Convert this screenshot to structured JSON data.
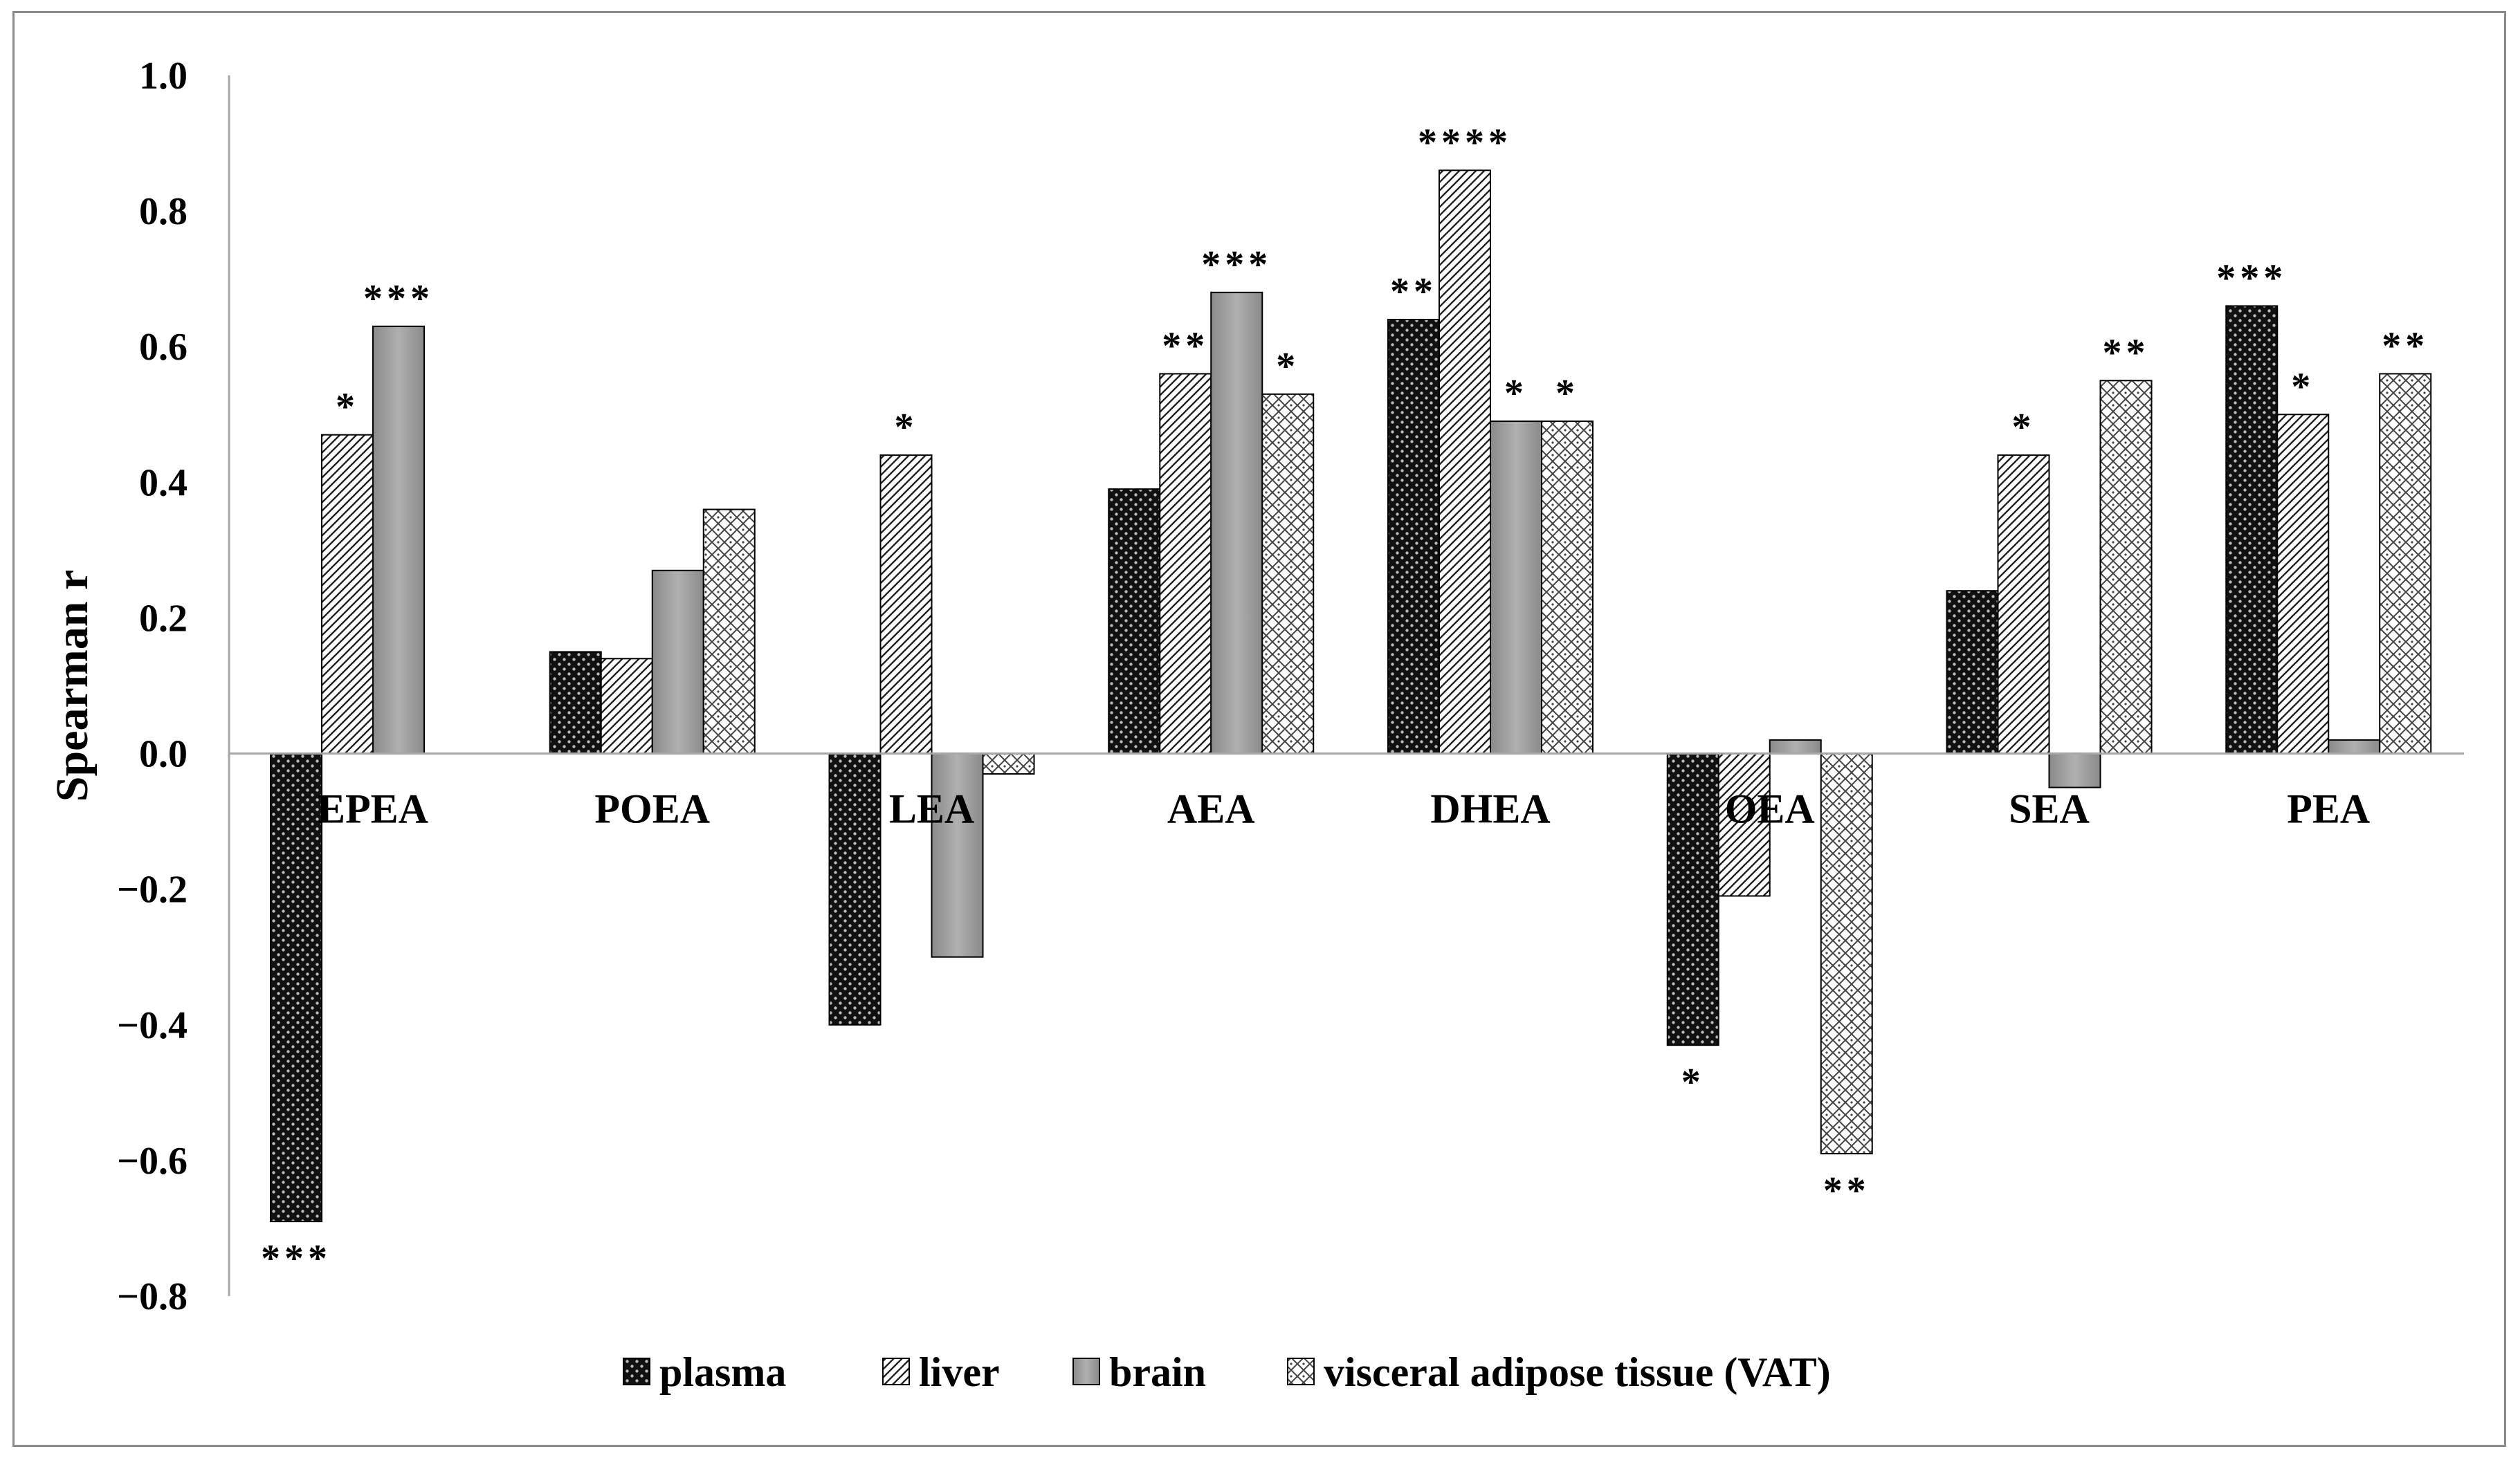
{
  "chart_data": {
    "type": "bar",
    "title": "",
    "xlabel": "",
    "ylabel": "Spearman r",
    "ylim": [
      -0.8,
      1.0
    ],
    "ytick_step": 0.2,
    "yticks": [
      "1.0",
      "0.8",
      "0.6",
      "0.4",
      "0.2",
      "0.0",
      "−0.2",
      "−0.4",
      "−0.6",
      "−0.8"
    ],
    "grid": false,
    "legend_position": "bottom",
    "categories": [
      "EPEA",
      "POEA",
      "LEA",
      "AEA",
      "DHEA",
      "OEA",
      "SEA",
      "PEA"
    ],
    "series": [
      {
        "name": "plasma",
        "pattern": "dots-dark",
        "values": [
          -0.69,
          0.15,
          -0.4,
          0.39,
          0.64,
          -0.43,
          0.24,
          0.66
        ],
        "significance": [
          "***",
          "",
          "",
          "",
          "**",
          "*",
          "",
          "***"
        ]
      },
      {
        "name": "liver",
        "pattern": "diagonal",
        "values": [
          0.47,
          0.14,
          0.44,
          0.56,
          0.86,
          -0.21,
          0.44,
          0.5
        ],
        "significance": [
          "*",
          "",
          "*",
          "**",
          "****",
          "",
          "*",
          "*"
        ]
      },
      {
        "name": "brain",
        "pattern": "solid-gray",
        "values": [
          0.63,
          0.27,
          -0.3,
          0.68,
          0.49,
          0.02,
          -0.05,
          0.02
        ],
        "significance": [
          "***",
          "",
          "",
          "***",
          "*",
          "",
          "",
          ""
        ]
      },
      {
        "name": "visceral adipose tissue (VAT)",
        "pattern": "crosshatch",
        "values": [
          0.0,
          0.36,
          -0.03,
          0.53,
          0.49,
          -0.59,
          0.55,
          0.56
        ],
        "significance": [
          "",
          "",
          "",
          "*",
          "*",
          "**",
          "**",
          "**"
        ]
      }
    ]
  }
}
